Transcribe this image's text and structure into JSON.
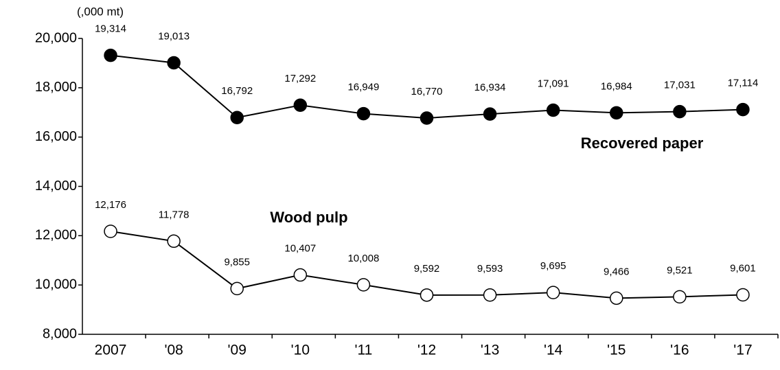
{
  "chart_data": {
    "type": "line",
    "unit_label": "(,000 mt)",
    "categories": [
      "2007",
      "'08",
      "'09",
      "'10",
      "'11",
      "'12",
      "'13",
      "'14",
      "'15",
      "'16",
      "'17"
    ],
    "ylim": [
      8000,
      20000
    ],
    "yticks": [
      {
        "value": 8000,
        "label": "8,000"
      },
      {
        "value": 10000,
        "label": "10,000"
      },
      {
        "value": 12000,
        "label": "12,000"
      },
      {
        "value": 14000,
        "label": "14,000"
      },
      {
        "value": 16000,
        "label": "16,000"
      },
      {
        "value": 18000,
        "label": "18,000"
      },
      {
        "value": 20000,
        "label": "20,000"
      }
    ],
    "grid": false,
    "series": [
      {
        "name": "Recovered paper",
        "color": "#000000",
        "marker_fill": "#000000",
        "values": [
          19314,
          19013,
          16792,
          17292,
          16949,
          16770,
          16934,
          17091,
          16984,
          17031,
          17114
        ],
        "value_labels": [
          "19,314",
          "19,013",
          "16,792",
          "17,292",
          "16,949",
          "16,770",
          "16,934",
          "17,091",
          "16,984",
          "17,031",
          "17,114"
        ]
      },
      {
        "name": "Wood pulp",
        "color": "#000000",
        "marker_fill": "#ffffff",
        "values": [
          12176,
          11778,
          9855,
          10407,
          10008,
          9592,
          9593,
          9695,
          9466,
          9521,
          9601
        ],
        "value_labels": [
          "12,176",
          "11,778",
          "9,855",
          "10,407",
          "10,008",
          "9,592",
          "9,593",
          "9,695",
          "9,466",
          "9,521",
          "9,601"
        ]
      }
    ]
  }
}
